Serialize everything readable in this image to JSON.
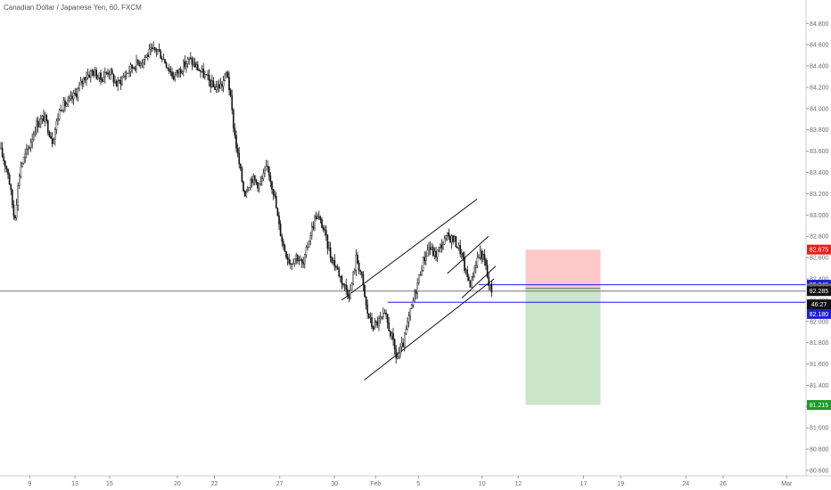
{
  "window": {
    "title": "Canadian Dollar / Japanese Yen, 60, FXCM"
  },
  "colors": {
    "candle": "#111111",
    "channel": "#111111",
    "blue_line": "#1c1cff",
    "gray_line": "#777777",
    "stop_zone": "#ffc9c9",
    "target_zone": "#cbe6c8",
    "badge_red": "#e8201a",
    "badge_blue": "#1f1fd0",
    "badge_black": "#111111",
    "badge_gray": "#6a6a6a",
    "badge_green": "#1c9a25"
  },
  "chart_data": {
    "type": "candlestick",
    "title": "Canadian Dollar / Japanese Yen, 60, FXCM",
    "xlabel": "",
    "ylabel": "",
    "ylim": [
      80.55,
      85.02
    ],
    "y_ticks": [
      80.6,
      80.8,
      81.0,
      81.2,
      81.4,
      81.6,
      81.8,
      82.0,
      82.2,
      82.4,
      82.6,
      82.8,
      83.0,
      83.2,
      83.4,
      83.6,
      83.8,
      84.0,
      84.2,
      84.4,
      84.6,
      84.8
    ],
    "y_tick_labels": [
      "80.600",
      "80.800",
      "81.000",
      "81.200",
      "81.400",
      "81.600",
      "81.800",
      "82.000",
      "82.200",
      "82.400",
      "82.600",
      "82.800",
      "83.000",
      "83.200",
      "83.400",
      "83.600",
      "83.800",
      "84.000",
      "84.200",
      "84.400",
      "84.600",
      "84.800"
    ],
    "x_ticks": [
      {
        "label": "9",
        "pos": 0.037
      },
      {
        "label": "13",
        "pos": 0.093
      },
      {
        "label": "15",
        "pos": 0.136
      },
      {
        "label": "20",
        "pos": 0.22
      },
      {
        "label": "22",
        "pos": 0.266
      },
      {
        "label": "27",
        "pos": 0.347
      },
      {
        "label": "30",
        "pos": 0.415
      },
      {
        "label": "Feb",
        "pos": 0.466
      },
      {
        "label": "5",
        "pos": 0.519
      },
      {
        "label": "10",
        "pos": 0.598
      },
      {
        "label": "12",
        "pos": 0.643
      },
      {
        "label": "17",
        "pos": 0.724
      },
      {
        "label": "19",
        "pos": 0.77
      },
      {
        "label": "24",
        "pos": 0.851
      },
      {
        "label": "26",
        "pos": 0.897
      },
      {
        "label": "Mar",
        "pos": 0.976
      }
    ],
    "price_path": [
      [
        0.0,
        83.62
      ],
      [
        0.01,
        83.4
      ],
      [
        0.018,
        82.95
      ],
      [
        0.025,
        83.45
      ],
      [
        0.035,
        83.62
      ],
      [
        0.045,
        83.85
      ],
      [
        0.055,
        83.92
      ],
      [
        0.065,
        83.7
      ],
      [
        0.075,
        84.02
      ],
      [
        0.085,
        84.05
      ],
      [
        0.095,
        84.15
      ],
      [
        0.105,
        84.3
      ],
      [
        0.115,
        84.35
      ],
      [
        0.125,
        84.28
      ],
      [
        0.135,
        84.36
      ],
      [
        0.145,
        84.22
      ],
      [
        0.155,
        84.32
      ],
      [
        0.165,
        84.4
      ],
      [
        0.175,
        84.45
      ],
      [
        0.185,
        84.52
      ],
      [
        0.195,
        84.56
      ],
      [
        0.205,
        84.44
      ],
      [
        0.215,
        84.3
      ],
      [
        0.225,
        84.38
      ],
      [
        0.235,
        84.46
      ],
      [
        0.245,
        84.38
      ],
      [
        0.255,
        84.3
      ],
      [
        0.265,
        84.2
      ],
      [
        0.275,
        84.22
      ],
      [
        0.282,
        84.35
      ],
      [
        0.29,
        83.82
      ],
      [
        0.295,
        83.55
      ],
      [
        0.303,
        83.2
      ],
      [
        0.312,
        83.35
      ],
      [
        0.322,
        83.28
      ],
      [
        0.332,
        83.45
      ],
      [
        0.34,
        83.2
      ],
      [
        0.346,
        82.9
      ],
      [
        0.352,
        82.7
      ],
      [
        0.36,
        82.55
      ],
      [
        0.368,
        82.62
      ],
      [
        0.376,
        82.52
      ],
      [
        0.384,
        82.8
      ],
      [
        0.392,
        83.0
      ],
      [
        0.4,
        82.9
      ],
      [
        0.41,
        82.62
      ],
      [
        0.418,
        82.5
      ],
      [
        0.426,
        82.35
      ],
      [
        0.434,
        82.25
      ],
      [
        0.442,
        82.6
      ],
      [
        0.448,
        82.45
      ],
      [
        0.455,
        82.1
      ],
      [
        0.462,
        81.95
      ],
      [
        0.47,
        82.0
      ],
      [
        0.478,
        82.05
      ],
      [
        0.486,
        81.85
      ],
      [
        0.492,
        81.65
      ],
      [
        0.5,
        81.78
      ],
      [
        0.508,
        82.05
      ],
      [
        0.516,
        82.3
      ],
      [
        0.524,
        82.55
      ],
      [
        0.532,
        82.7
      ],
      [
        0.54,
        82.62
      ],
      [
        0.548,
        82.72
      ],
      [
        0.556,
        82.8
      ],
      [
        0.564,
        82.76
      ],
      [
        0.572,
        82.65
      ],
      [
        0.578,
        82.45
      ],
      [
        0.584,
        82.35
      ],
      [
        0.59,
        82.55
      ],
      [
        0.596,
        82.65
      ],
      [
        0.602,
        82.55
      ],
      [
        0.606,
        82.35
      ],
      [
        0.61,
        82.29
      ]
    ],
    "channels": [
      {
        "name": "upper-channel-line",
        "x1": 0.424,
        "y1": 82.2,
        "x2": 0.592,
        "y2": 83.15
      },
      {
        "name": "lower-channel-line",
        "x1": 0.452,
        "y1": 81.45,
        "x2": 0.613,
        "y2": 82.4
      },
      {
        "name": "small-channel-upper",
        "x1": 0.555,
        "y1": 82.45,
        "x2": 0.606,
        "y2": 82.8
      },
      {
        "name": "small-channel-lower",
        "x1": 0.573,
        "y1": 82.22,
        "x2": 0.615,
        "y2": 82.52
      }
    ],
    "horizontal_lines": [
      {
        "name": "entry-line",
        "price": 82.345,
        "x_start": 0.594,
        "color": "#1c1cff"
      },
      {
        "name": "support-line",
        "price": 82.18,
        "x_start": 0.481,
        "color": "#1c1cff"
      },
      {
        "name": "crosshair-line",
        "price": 82.285,
        "x_start": 0.0,
        "color": "#777777"
      }
    ],
    "position_tool": {
      "x_start": 0.652,
      "x_end": 0.745,
      "entry": 82.31,
      "stop": 82.675,
      "target": 81.215
    },
    "price_badges": [
      {
        "name": "stop-price-badge",
        "label": "82.675",
        "price": 82.675,
        "color": "#e8201a"
      },
      {
        "name": "entry-price-badge",
        "label": "82.345",
        "price": 82.345,
        "color": "#1f1fd0"
      },
      {
        "name": "mid-price-badge",
        "label": "82.310",
        "price": 82.31,
        "color": "#6a6a6a"
      },
      {
        "name": "last-price-badge",
        "label": "82.285",
        "price": 82.285,
        "color": "#111111"
      },
      {
        "name": "countdown-badge",
        "label": "46:27",
        "price": 82.16,
        "color": "#111111"
      },
      {
        "name": "support-price-badge",
        "label": "82.180",
        "price": 82.07,
        "color": "#1f1fd0"
      },
      {
        "name": "target-price-badge",
        "label": "81.215",
        "price": 81.215,
        "color": "#1c9a25"
      }
    ]
  }
}
